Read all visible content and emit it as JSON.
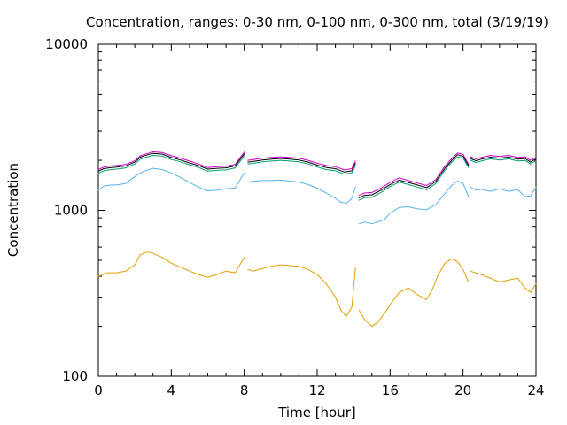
{
  "chart_data": {
    "type": "line",
    "title": "Concentration, ranges: 0-30 nm, 0-100 nm, 0-300 nm, total (3/19/19)",
    "xlabel": "Time [hour]",
    "ylabel": "Concentration",
    "xlim": [
      0,
      24
    ],
    "ylim": [
      100,
      10000
    ],
    "yscale": "log",
    "grid": false,
    "legend": "none",
    "xticks": [
      "0",
      "4",
      "8",
      "12",
      "16",
      "20",
      "24"
    ],
    "yticks": [
      "100",
      "1000",
      "10000"
    ],
    "gaps": [
      [
        8.0,
        8.2
      ],
      [
        14.1,
        14.3
      ],
      [
        20.3,
        20.4
      ]
    ],
    "series": [
      {
        "color": "#e69f00",
        "x": [
          0,
          0.5,
          1,
          1.5,
          2,
          2.3,
          2.7,
          3,
          3.5,
          4,
          4.5,
          5,
          5.5,
          6,
          6.5,
          7,
          7.5,
          8,
          8.2,
          8.5,
          9,
          9.5,
          10,
          10.5,
          11,
          11.5,
          12,
          12.5,
          13,
          13.3,
          13.6,
          13.9,
          14.1,
          14.3,
          14.6,
          15,
          15.3,
          15.7,
          16,
          16.5,
          17,
          17.5,
          18,
          18.3,
          18.6,
          19,
          19.4,
          19.7,
          20,
          20.3,
          20.4,
          20.7,
          21,
          21.5,
          22,
          22.5,
          23,
          23.4,
          23.7,
          24
        ],
        "y": [
          400,
          420,
          420,
          430,
          470,
          540,
          560,
          550,
          520,
          480,
          455,
          430,
          410,
          395,
          410,
          430,
          420,
          520,
          440,
          430,
          445,
          460,
          470,
          465,
          460,
          440,
          410,
          360,
          300,
          250,
          230,
          260,
          450,
          250,
          220,
          200,
          210,
          240,
          270,
          320,
          340,
          310,
          290,
          330,
          400,
          480,
          510,
          490,
          440,
          370,
          430,
          420,
          410,
          390,
          370,
          380,
          390,
          340,
          320,
          360
        ]
      },
      {
        "color": "#56b4e9",
        "x": [
          0,
          0.3,
          0.7,
          1,
          1.5,
          2,
          2.5,
          3,
          3.5,
          4,
          4.5,
          5,
          5.5,
          6,
          6.5,
          7,
          7.5,
          8,
          8.2,
          8.5,
          9,
          9.5,
          10,
          10.5,
          11,
          11.5,
          12,
          12.5,
          13,
          13.3,
          13.6,
          13.9,
          14.1,
          14.3,
          14.6,
          15,
          15.3,
          15.7,
          16,
          16.5,
          17,
          17.5,
          18,
          18.5,
          19,
          19.4,
          19.7,
          20,
          20.3,
          20.4,
          20.7,
          21,
          21.5,
          22,
          22.5,
          23,
          23.4,
          23.7,
          24
        ],
        "y": [
          1320,
          1400,
          1420,
          1420,
          1450,
          1600,
          1720,
          1790,
          1760,
          1680,
          1580,
          1470,
          1380,
          1310,
          1320,
          1350,
          1360,
          1680,
          1480,
          1500,
          1510,
          1510,
          1520,
          1500,
          1480,
          1430,
          1360,
          1270,
          1180,
          1120,
          1100,
          1180,
          1380,
          830,
          850,
          830,
          850,
          880,
          960,
          1040,
          1050,
          1020,
          1010,
          1080,
          1260,
          1420,
          1500,
          1450,
          1210,
          1380,
          1320,
          1340,
          1300,
          1350,
          1300,
          1330,
          1210,
          1220,
          1380
        ]
      },
      {
        "color": "#009e73",
        "x": [
          0,
          0.3,
          0.7,
          1,
          1.5,
          2,
          2.3,
          2.7,
          3,
          3.5,
          4,
          4.5,
          5,
          5.5,
          6,
          6.5,
          7,
          7.5,
          8,
          8.2,
          8.5,
          9,
          9.5,
          10,
          10.5,
          11,
          11.5,
          12,
          12.5,
          13,
          13.5,
          13.9,
          14.1,
          14.3,
          14.6,
          15,
          15.5,
          16,
          16.5,
          17,
          17.5,
          18,
          18.5,
          19,
          19.4,
          19.7,
          20,
          20.3,
          20.4,
          20.7,
          21,
          21.5,
          22,
          22.5,
          23,
          23.4,
          23.7,
          24
        ],
        "y": [
          1670,
          1730,
          1760,
          1770,
          1800,
          1900,
          2030,
          2100,
          2140,
          2120,
          2020,
          1960,
          1880,
          1810,
          1720,
          1740,
          1750,
          1800,
          2130,
          1900,
          1920,
          1960,
          1980,
          2000,
          1980,
          1960,
          1900,
          1820,
          1760,
          1730,
          1650,
          1680,
          1860,
          1150,
          1190,
          1200,
          1280,
          1390,
          1480,
          1430,
          1380,
          1330,
          1450,
          1740,
          1960,
          2100,
          2060,
          1810,
          2000,
          1940,
          1980,
          2040,
          2010,
          2040,
          1980,
          2000,
          1900,
          1990
        ]
      },
      {
        "color": "#000000",
        "x": [
          0,
          0.3,
          0.7,
          1,
          1.5,
          2,
          2.3,
          2.7,
          3,
          3.5,
          4,
          4.5,
          5,
          5.5,
          6,
          6.5,
          7,
          7.5,
          8,
          8.2,
          8.5,
          9,
          9.5,
          10,
          10.5,
          11,
          11.5,
          12,
          12.5,
          13,
          13.5,
          13.9,
          14.1,
          14.3,
          14.6,
          15,
          15.5,
          16,
          16.5,
          17,
          17.5,
          18,
          18.5,
          19,
          19.4,
          19.7,
          20,
          20.3,
          20.4,
          20.7,
          21,
          21.5,
          22,
          22.5,
          23,
          23.4,
          23.7,
          24
        ],
        "y": [
          1720,
          1780,
          1810,
          1820,
          1850,
          1950,
          2090,
          2160,
          2200,
          2180,
          2080,
          2010,
          1930,
          1860,
          1770,
          1790,
          1800,
          1850,
          2190,
          1950,
          1970,
          2010,
          2030,
          2050,
          2030,
          2010,
          1950,
          1870,
          1810,
          1780,
          1700,
          1730,
          1920,
          1190,
          1230,
          1240,
          1320,
          1430,
          1520,
          1470,
          1420,
          1370,
          1490,
          1790,
          2010,
          2160,
          2120,
          1860,
          2050,
          1990,
          2030,
          2090,
          2060,
          2090,
          2030,
          2050,
          1950,
          2040
        ]
      },
      {
        "color": "#cc00cc",
        "x": [
          0,
          0.3,
          0.7,
          1,
          1.5,
          2,
          2.3,
          2.7,
          3,
          3.5,
          4,
          4.5,
          5,
          5.5,
          6,
          6.5,
          7,
          7.5,
          8,
          8.2,
          8.5,
          9,
          9.5,
          10,
          10.5,
          11,
          11.5,
          12,
          12.5,
          13,
          13.5,
          13.9,
          14.1,
          14.3,
          14.6,
          15,
          15.5,
          16,
          16.5,
          17,
          17.5,
          18,
          18.5,
          19,
          19.4,
          19.7,
          20,
          20.3,
          20.4,
          20.7,
          21,
          21.5,
          22,
          22.5,
          23,
          23.4,
          23.7,
          24
        ],
        "y": [
          1760,
          1820,
          1850,
          1860,
          1890,
          1990,
          2130,
          2200,
          2250,
          2230,
          2130,
          2060,
          1980,
          1900,
          1810,
          1830,
          1840,
          1890,
          2240,
          2000,
          2020,
          2060,
          2080,
          2100,
          2080,
          2060,
          2000,
          1920,
          1860,
          1830,
          1750,
          1780,
          1980,
          1230,
          1270,
          1280,
          1360,
          1470,
          1570,
          1510,
          1460,
          1410,
          1530,
          1840,
          2060,
          2210,
          2170,
          1900,
          2100,
          2040,
          2080,
          2140,
          2110,
          2140,
          2080,
          2100,
          2000,
          2090
        ]
      }
    ]
  }
}
